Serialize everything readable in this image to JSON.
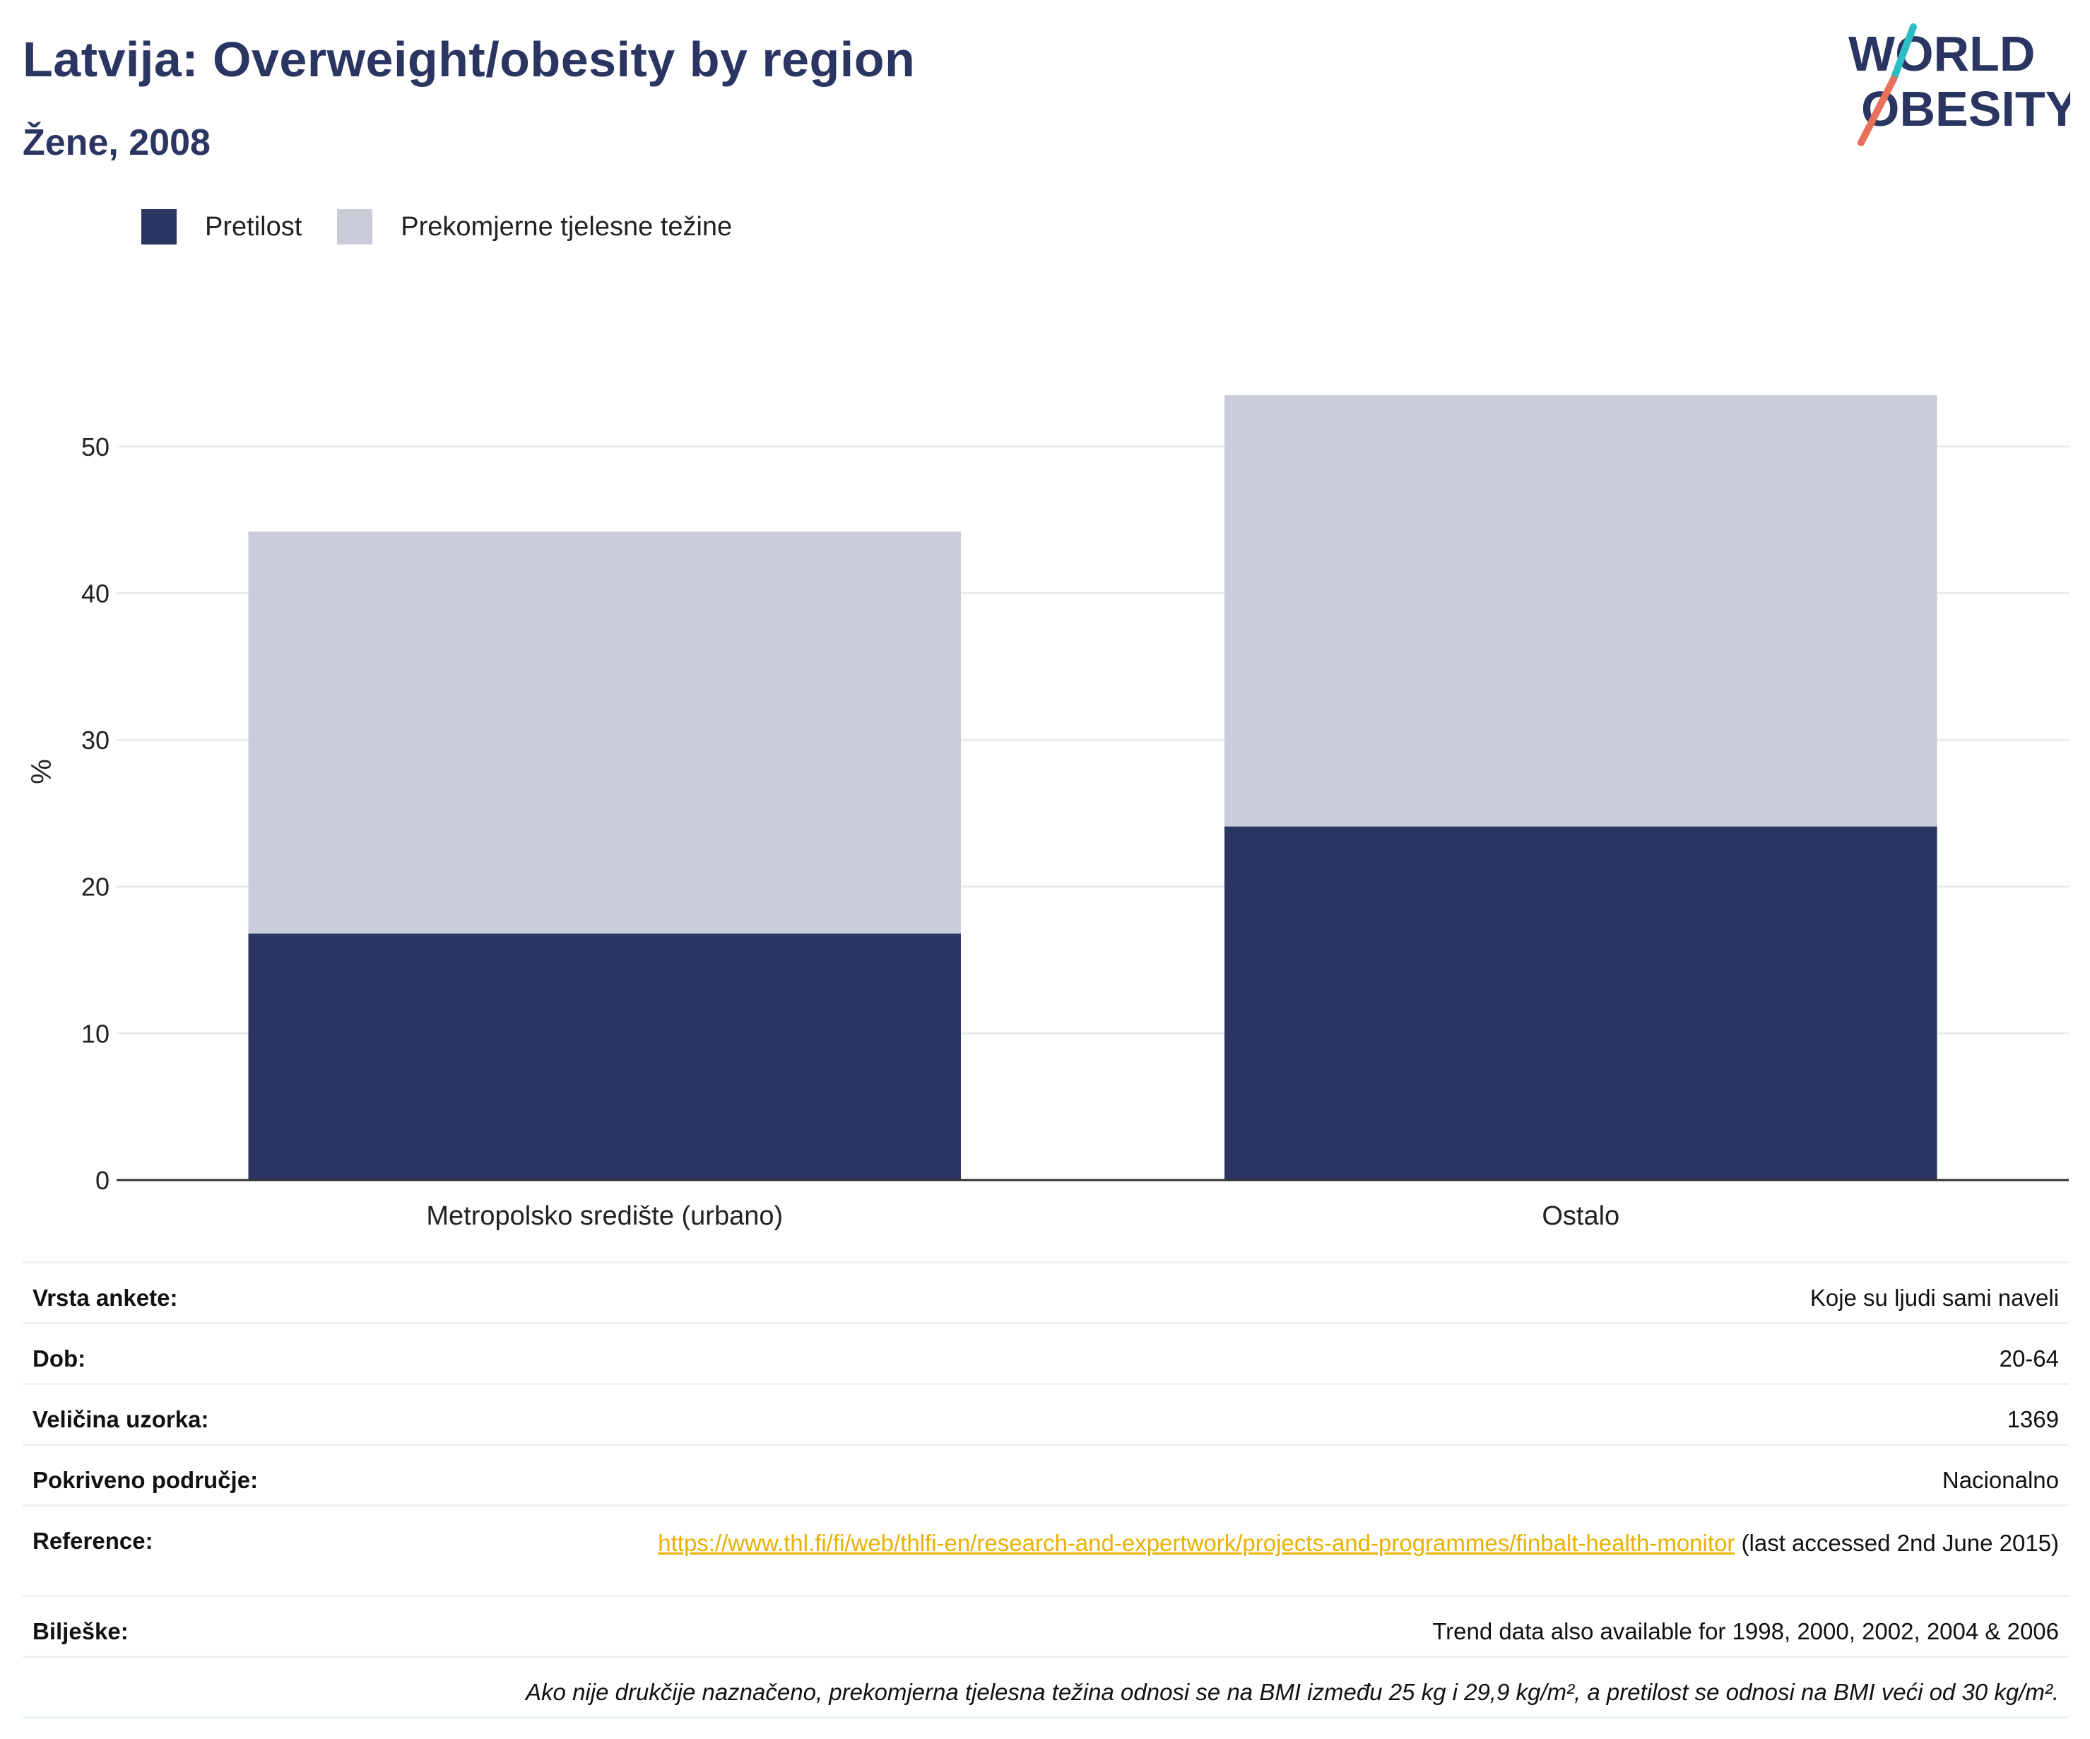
{
  "header": {
    "title": "Latvija: Overweight/obesity by region",
    "subtitle": "Žene, 2008"
  },
  "logo": {
    "line1": "WORLD",
    "line2": "OBESITY"
  },
  "colors": {
    "obesity": "#2a3562",
    "overweight": "#cacdd9",
    "accent_teal": "#2bbfc4",
    "accent_red": "#e8705a",
    "link": "#e8b100"
  },
  "chart_data": {
    "type": "bar",
    "stacked": true,
    "categories": [
      "Metropolsko središte (urbano)",
      "Ostalo"
    ],
    "series": [
      {
        "name": "Pretilost",
        "values": [
          16.8,
          24.1
        ]
      },
      {
        "name": "Prekomjerne tjelesne težine",
        "values": [
          27.4,
          29.4
        ]
      }
    ],
    "ylabel": "%",
    "yticks": [
      0,
      10,
      20,
      30,
      40,
      50
    ],
    "ylim": [
      0,
      55
    ],
    "grid": true,
    "legend": "top-left"
  },
  "meta": {
    "survey_type_label": "Vrsta ankete:",
    "survey_type_value": "Koje su ljudi sami naveli",
    "age_label": "Dob:",
    "age_value": "20-64",
    "sample_label": "Veličina uzorka:",
    "sample_value": "1369",
    "coverage_label": "Pokriveno područje:",
    "coverage_value": "Nacionalno",
    "reference_label": "Reference:",
    "reference_url": "https://www.thl.fi/fi/web/thlfi-en/research-and-expertwork/projects-and-programmes/finbalt-health-monitor",
    "reference_suffix": " (last accessed 2nd June 2015)",
    "notes_label": "Bilješke:",
    "notes_value": "Trend data also available for 1998, 2000, 2002, 2004 & 2006",
    "footnote": "Ako nije drukčije naznačeno, prekomjerna tjelesna težina odnosi se na BMI između 25 kg i 29,9 kg/m², a pretilost se odnosi na BMI veći od 30 kg/m²."
  }
}
